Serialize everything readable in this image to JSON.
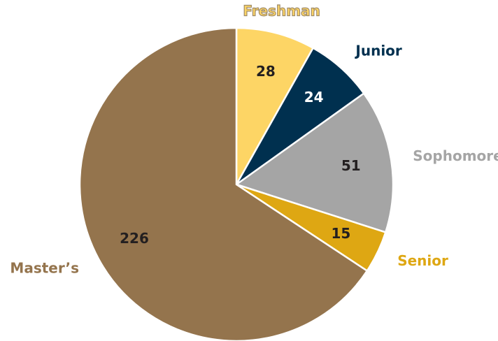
{
  "chart_data": {
    "type": "pie",
    "categories": [
      "Freshman",
      "Junior",
      "Sophomore",
      "Senior",
      "Master’s"
    ],
    "values": [
      28,
      24,
      51,
      15,
      226
    ],
    "colors": [
      "#fdd565",
      "#00304f",
      "#a5a5a5",
      "#dea713",
      "#94744d"
    ]
  }
}
